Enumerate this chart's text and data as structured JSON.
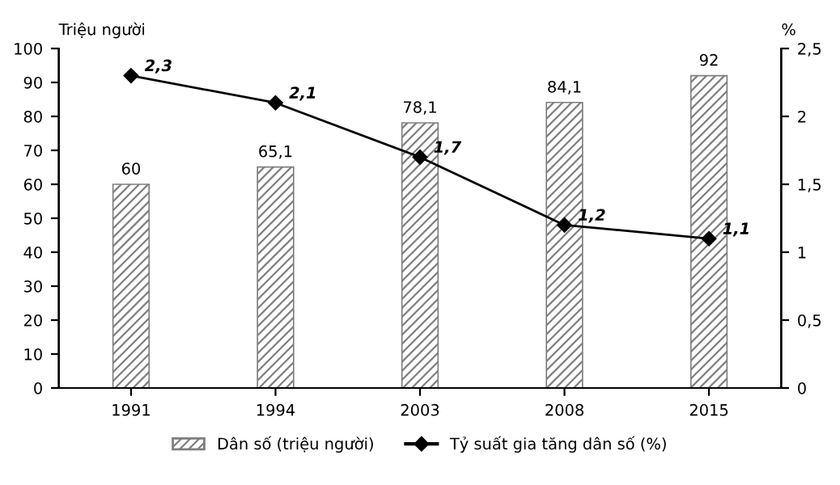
{
  "chart_data": {
    "type": "bar",
    "categories": [
      "1991",
      "1994",
      "2003",
      "2008",
      "2015"
    ],
    "ylabel": "Triệu người",
    "y2label": "%",
    "ylim": [
      0,
      100
    ],
    "yticks": [
      0,
      10,
      20,
      30,
      40,
      50,
      60,
      70,
      80,
      90,
      100
    ],
    "y2lim": [
      0,
      2.5
    ],
    "y2ticks": [
      0,
      {
        "value": 0.5,
        "label": "0,5"
      },
      1,
      {
        "value": 1.5,
        "label": "1,5"
      },
      2,
      {
        "value": 2.5,
        "label": "2,5"
      }
    ],
    "series": [
      {
        "name": "Dân số (triệu người)",
        "color": "#7f7f7f",
        "values": [
          60,
          65.1,
          78.1,
          84.1,
          92
        ],
        "value_labels": [
          "60",
          "65,1",
          "78,1",
          "84,1",
          "92"
        ]
      },
      {
        "name": "Tỷ suất gia tăng dân số (%)",
        "type": "line",
        "axis": "y2",
        "color": "#000000",
        "marker": "diamond",
        "values": [
          2.3,
          2.1,
          1.7,
          1.2,
          1.1
        ],
        "value_labels": [
          "2,3",
          "2,1",
          "1,7",
          "1,2",
          "1,1"
        ]
      }
    ],
    "legend": "bottom",
    "grid": false
  }
}
